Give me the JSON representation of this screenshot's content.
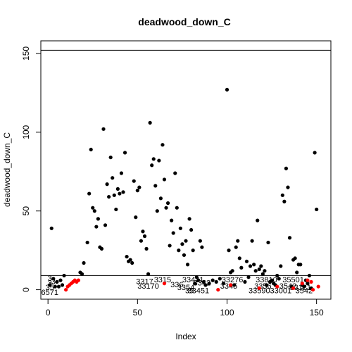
{
  "chart_data": {
    "type": "scatter",
    "title": "deadwood_down_C",
    "xlabel": "Index",
    "ylabel": "deadwood_down_C",
    "xlim": [
      -4,
      158
    ],
    "ylim": [
      -6,
      158
    ],
    "x_ticks": [
      0,
      50,
      100,
      150
    ],
    "y_ticks": [
      0,
      50,
      100,
      150
    ],
    "hlines": [
      152,
      9
    ],
    "colors": {
      "black": "#000000",
      "red": "#ff0000"
    },
    "black_points": [
      [
        1,
        3
      ],
      [
        2,
        39
      ],
      [
        3,
        7
      ],
      [
        4,
        2
      ],
      [
        5,
        5
      ],
      [
        6,
        2
      ],
      [
        7,
        6
      ],
      [
        8,
        3
      ],
      [
        9,
        9
      ],
      [
        18,
        11
      ],
      [
        19,
        10
      ],
      [
        20,
        17
      ],
      [
        22,
        30
      ],
      [
        23,
        61
      ],
      [
        24,
        89
      ],
      [
        25,
        52
      ],
      [
        26,
        50
      ],
      [
        27,
        40
      ],
      [
        28,
        45
      ],
      [
        29,
        27
      ],
      [
        30,
        26
      ],
      [
        31,
        102
      ],
      [
        32,
        41
      ],
      [
        33,
        67
      ],
      [
        34,
        59
      ],
      [
        35,
        84
      ],
      [
        36,
        71
      ],
      [
        37,
        60
      ],
      [
        38,
        51
      ],
      [
        39,
        64
      ],
      [
        40,
        61
      ],
      [
        41,
        74
      ],
      [
        42,
        62
      ],
      [
        43,
        87
      ],
      [
        44,
        21
      ],
      [
        45,
        18
      ],
      [
        46,
        19
      ],
      [
        47,
        17
      ],
      [
        48,
        69
      ],
      [
        49,
        46
      ],
      [
        50,
        63
      ],
      [
        51,
        65
      ],
      [
        52,
        31
      ],
      [
        53,
        37
      ],
      [
        54,
        34
      ],
      [
        55,
        26
      ],
      [
        56,
        10
      ],
      [
        57,
        106
      ],
      [
        58,
        79
      ],
      [
        59,
        83
      ],
      [
        60,
        66
      ],
      [
        61,
        50
      ],
      [
        62,
        82
      ],
      [
        63,
        58
      ],
      [
        64,
        92
      ],
      [
        65,
        70
      ],
      [
        66,
        52
      ],
      [
        67,
        55
      ],
      [
        68,
        28
      ],
      [
        69,
        44
      ],
      [
        70,
        36
      ],
      [
        71,
        74
      ],
      [
        72,
        52
      ],
      [
        73,
        25
      ],
      [
        74,
        39
      ],
      [
        75,
        29
      ],
      [
        76,
        22
      ],
      [
        77,
        31
      ],
      [
        78,
        16
      ],
      [
        79,
        45
      ],
      [
        80,
        38
      ],
      [
        81,
        25
      ],
      [
        82,
        4
      ],
      [
        83,
        8
      ],
      [
        84,
        6
      ],
      [
        85,
        31
      ],
      [
        86,
        27
      ],
      [
        87,
        5
      ],
      [
        88,
        3
      ],
      [
        90,
        4
      ],
      [
        92,
        6
      ],
      [
        94,
        5
      ],
      [
        96,
        7
      ],
      [
        98,
        4
      ],
      [
        100,
        127
      ],
      [
        101,
        25
      ],
      [
        102,
        11
      ],
      [
        103,
        12
      ],
      [
        104,
        3
      ],
      [
        105,
        27
      ],
      [
        106,
        31
      ],
      [
        107,
        20
      ],
      [
        108,
        14
      ],
      [
        110,
        5
      ],
      [
        111,
        18
      ],
      [
        112,
        8
      ],
      [
        113,
        15
      ],
      [
        114,
        31
      ],
      [
        115,
        16
      ],
      [
        116,
        12
      ],
      [
        117,
        44
      ],
      [
        118,
        13
      ],
      [
        119,
        15
      ],
      [
        120,
        10
      ],
      [
        121,
        12
      ],
      [
        122,
        3
      ],
      [
        123,
        30
      ],
      [
        124,
        5
      ],
      [
        125,
        6
      ],
      [
        126,
        4
      ],
      [
        127,
        3
      ],
      [
        128,
        9
      ],
      [
        129,
        7
      ],
      [
        130,
        15
      ],
      [
        131,
        60
      ],
      [
        132,
        56
      ],
      [
        133,
        77
      ],
      [
        134,
        65
      ],
      [
        135,
        33
      ],
      [
        136,
        2
      ],
      [
        137,
        19
      ],
      [
        138,
        20
      ],
      [
        139,
        11
      ],
      [
        140,
        16
      ],
      [
        141,
        16
      ],
      [
        142,
        3
      ],
      [
        143,
        2
      ],
      [
        144,
        6
      ],
      [
        145,
        4
      ],
      [
        146,
        9
      ],
      [
        147,
        1
      ],
      [
        149,
        87
      ],
      [
        150,
        51
      ]
    ],
    "red_points": [
      [
        10,
        0
      ],
      [
        11,
        2
      ],
      [
        12,
        3
      ],
      [
        13,
        4
      ],
      [
        14,
        5
      ],
      [
        15,
        6
      ],
      [
        16,
        5
      ],
      [
        17,
        6
      ],
      [
        65,
        4
      ],
      [
        95,
        0
      ],
      [
        102,
        3
      ],
      [
        118,
        1
      ],
      [
        128,
        2
      ],
      [
        137,
        1
      ],
      [
        142,
        4
      ],
      [
        145,
        6
      ],
      [
        147,
        5
      ],
      [
        148,
        0
      ],
      [
        151,
        2
      ]
    ],
    "point_labels": [
      {
        "text": "3",
        "x": 1,
        "y": 7
      },
      {
        "text": "3",
        "x": 1,
        "y": 4
      },
      {
        "text": "35",
        "x": 1,
        "y": 1
      },
      {
        "text": "3",
        "x": 3,
        "y": 5
      },
      {
        "text": "6571",
        "x": 1,
        "y": -2
      },
      {
        "text": "3317",
        "x": 54,
        "y": 5
      },
      {
        "text": "33170",
        "x": 56,
        "y": 2
      },
      {
        "text": "3315",
        "x": 64,
        "y": 6
      },
      {
        "text": "336",
        "x": 72,
        "y": 3
      },
      {
        "text": "3354",
        "x": 77,
        "y": 1
      },
      {
        "text": "33431",
        "x": 81,
        "y": 6
      },
      {
        "text": "3342",
        "x": 86,
        "y": 4
      },
      {
        "text": "33451",
        "x": 84,
        "y": -1
      },
      {
        "text": "35",
        "x": 79,
        "y": -1
      },
      {
        "text": "33276",
        "x": 103,
        "y": 6
      },
      {
        "text": "3345",
        "x": 101,
        "y": 2
      },
      {
        "text": "33810",
        "x": 122,
        "y": 6
      },
      {
        "text": "3356",
        "x": 120,
        "y": 2
      },
      {
        "text": "33590",
        "x": 118,
        "y": -1
      },
      {
        "text": "33001",
        "x": 130,
        "y": -1
      },
      {
        "text": "35501",
        "x": 137,
        "y": 6
      },
      {
        "text": "3542",
        "x": 134,
        "y": 2
      },
      {
        "text": "33121",
        "x": 141,
        "y": 1
      },
      {
        "text": "3542",
        "x": 143,
        "y": -1
      }
    ]
  }
}
